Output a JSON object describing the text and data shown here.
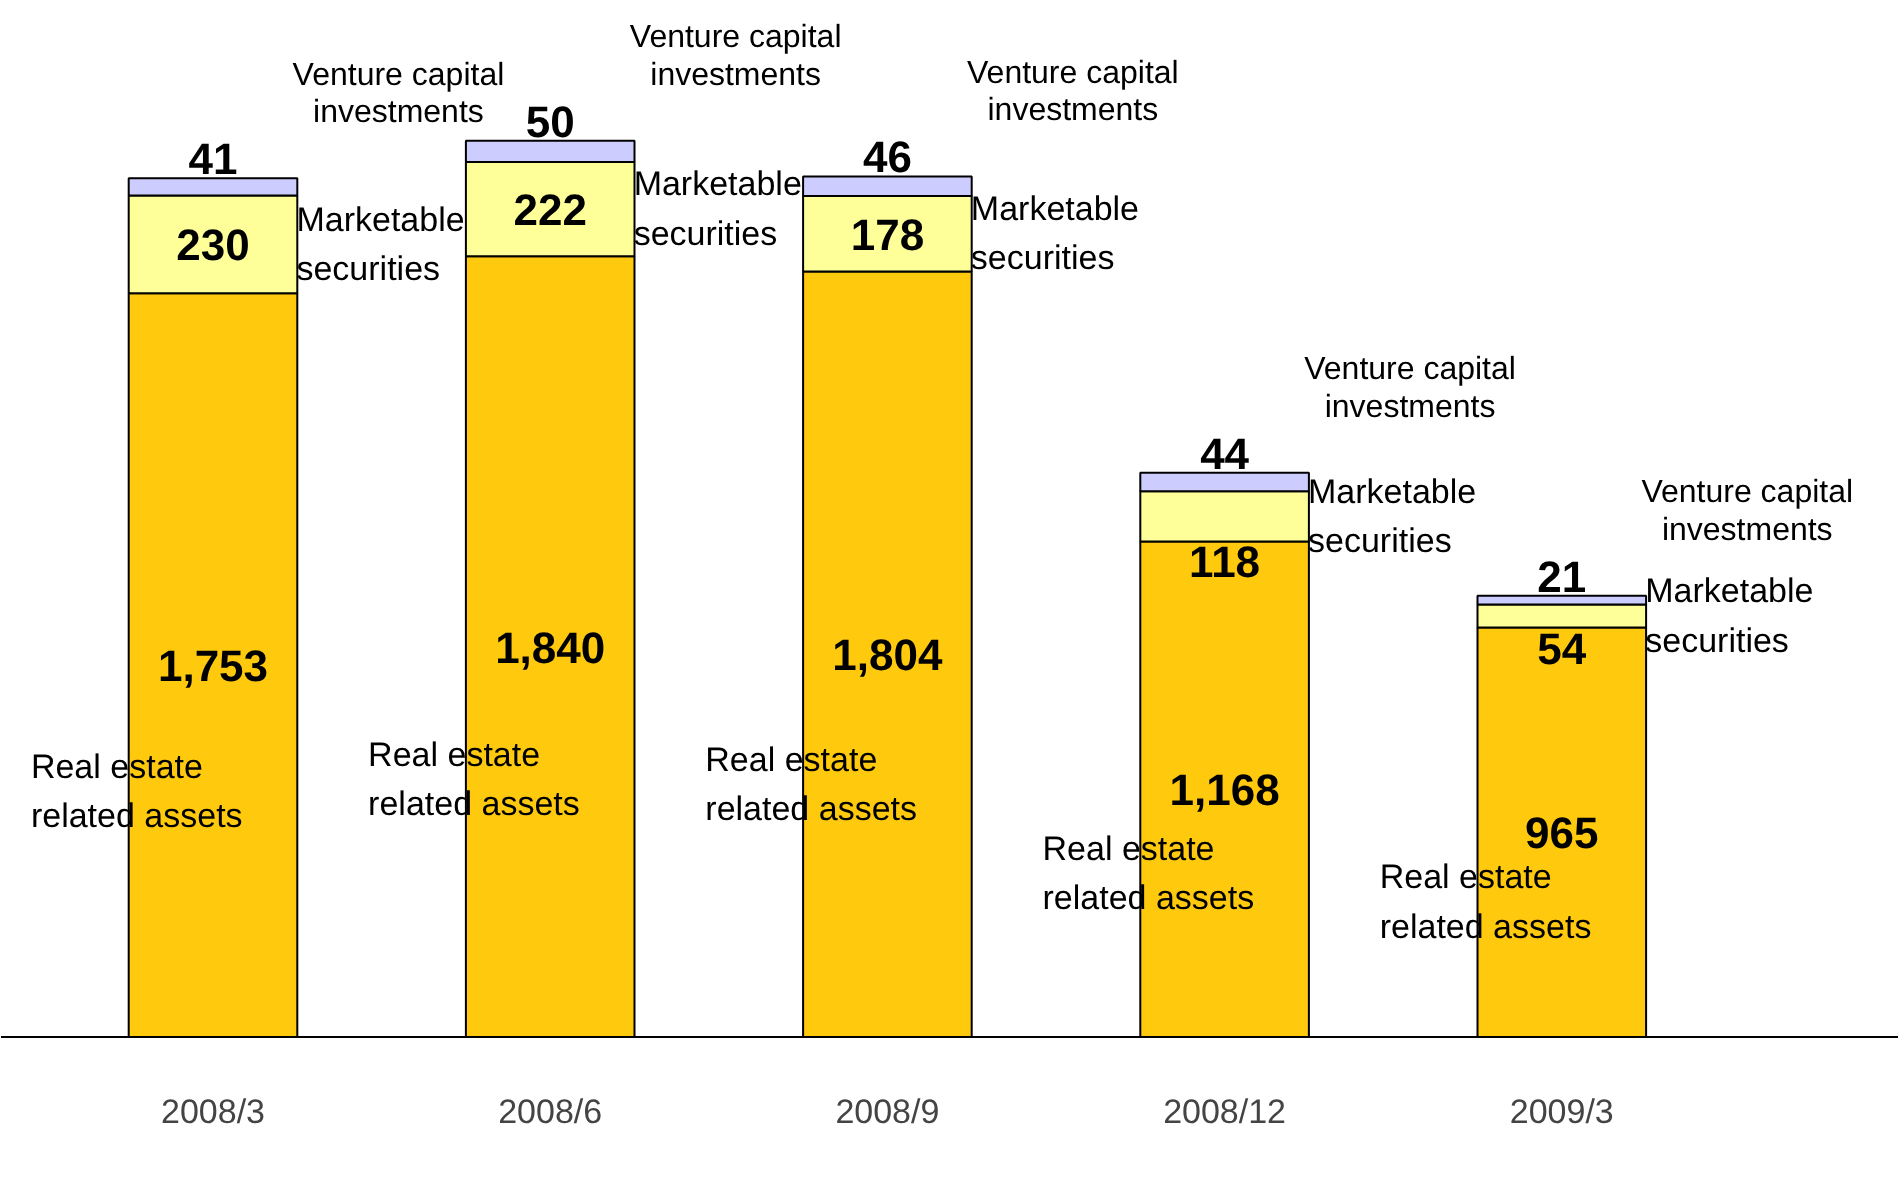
{
  "chart_data": {
    "type": "bar",
    "stacked": true,
    "categories": [
      "2008/3",
      "2008/6",
      "2008/9",
      "2008/12",
      "2009/3"
    ],
    "series": [
      {
        "name": "Real estate related assets",
        "color": "#ffc90e",
        "values": [
          1753,
          1840,
          1804,
          1168,
          965
        ],
        "value_labels": [
          "1,753",
          "1,840",
          "1,804",
          "1,168",
          "965"
        ]
      },
      {
        "name": "Marketable securities",
        "color": "#ffff99",
        "values": [
          230,
          222,
          178,
          118,
          54
        ],
        "value_labels": [
          "230",
          "222",
          "178",
          "118",
          "54"
        ]
      },
      {
        "name": "Venture capital investments",
        "color": "#ccccff",
        "values": [
          41,
          50,
          46,
          44,
          21
        ],
        "value_labels": [
          "41",
          "50",
          "46",
          "44",
          "21"
        ]
      }
    ]
  }
}
